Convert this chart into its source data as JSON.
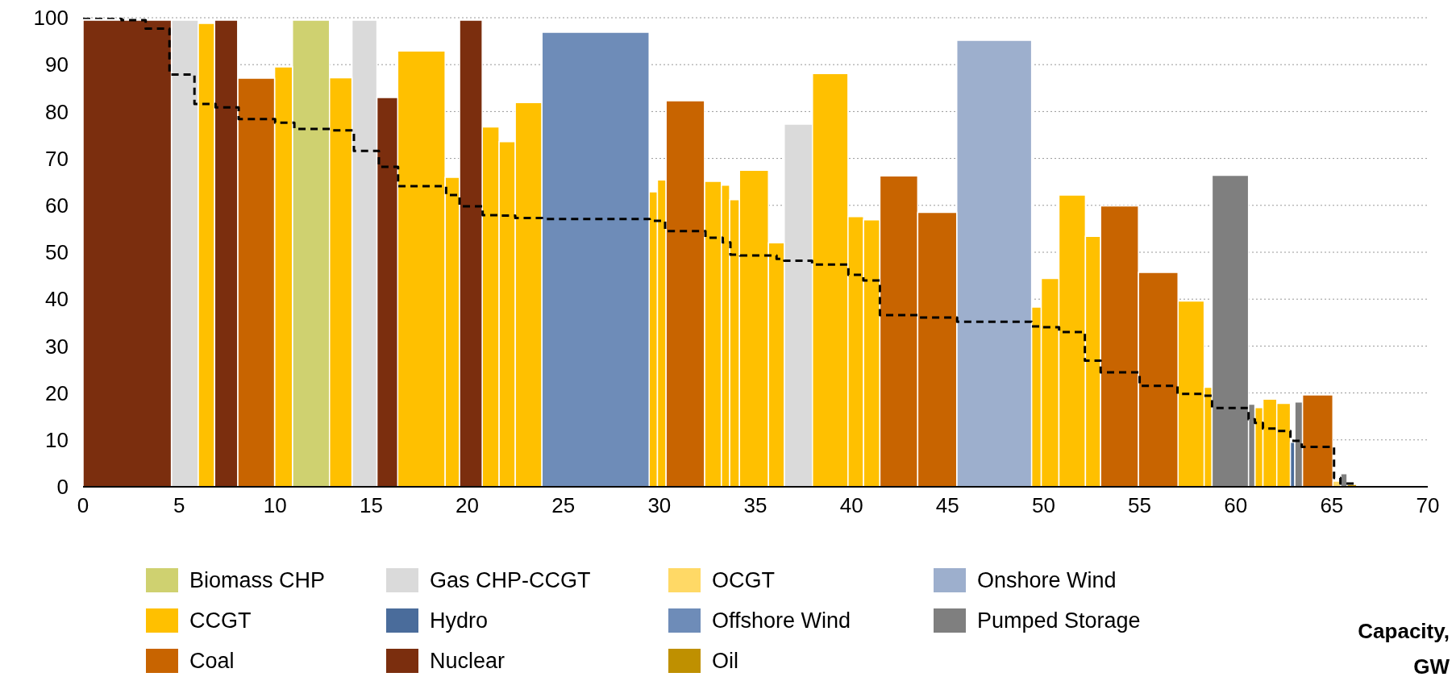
{
  "chart_data": {
    "type": "histogram",
    "xlabel": "Capacity, GW",
    "bins": [
      0,
      4.6,
      6.0,
      6.85,
      8.05,
      9.97,
      10.9,
      12.83,
      14.0,
      15.3,
      16.38,
      18.85,
      19.6,
      20.78,
      21.66,
      22.5,
      23.89,
      29.47,
      29.9,
      30.35,
      32.35,
      33.23,
      33.66,
      34.17,
      35.68,
      36.5,
      37.97,
      39.82,
      40.63,
      41.48,
      43.45,
      45.48,
      49.38,
      49.88,
      50.8,
      52.18,
      52.97,
      54.94,
      57.0,
      58.36,
      58.77,
      60.67,
      61.0,
      61.42,
      62.14,
      62.85,
      63.08,
      63.48,
      65.06,
      65.47,
      65.8,
      66.3
    ],
    "series": [
      {
        "name": "Biomass CHP",
        "color": "#cfd170",
        "values": [
          null,
          null,
          null,
          null,
          null,
          null,
          99.5,
          null,
          null,
          null,
          null,
          null,
          null,
          null,
          null,
          null,
          null,
          null,
          null,
          null,
          null,
          null,
          null,
          null,
          null,
          null,
          null,
          null,
          null,
          null,
          null,
          null,
          null,
          null,
          null,
          null,
          null,
          null,
          null,
          null,
          null,
          null,
          null,
          null,
          null,
          null,
          null,
          null,
          null,
          null,
          null
        ]
      },
      {
        "name": "Gas CHP-CCGT",
        "color": "#dadada",
        "values": [
          null,
          99.5,
          null,
          null,
          null,
          null,
          null,
          null,
          99.5,
          null,
          null,
          null,
          null,
          null,
          null,
          null,
          null,
          null,
          null,
          null,
          null,
          null,
          null,
          null,
          null,
          77.3,
          null,
          null,
          null,
          null,
          null,
          null,
          null,
          null,
          null,
          null,
          null,
          null,
          null,
          null,
          null,
          null,
          null,
          null,
          null,
          null,
          null,
          null,
          null,
          null,
          null
        ]
      },
      {
        "name": "OCGT",
        "color": "#ffd966",
        "values": [
          null,
          null,
          null,
          null,
          null,
          null,
          null,
          null,
          null,
          null,
          null,
          null,
          null,
          null,
          null,
          null,
          null,
          null,
          null,
          null,
          null,
          null,
          null,
          null,
          null,
          null,
          null,
          null,
          null,
          null,
          null,
          null,
          null,
          null,
          null,
          null,
          null,
          null,
          null,
          null,
          null,
          null,
          null,
          null,
          null,
          null,
          null,
          null,
          1.2,
          null,
          null
        ]
      },
      {
        "name": "Onshore Wind",
        "color": "#9dafcd",
        "values": [
          null,
          null,
          null,
          null,
          null,
          null,
          null,
          null,
          null,
          null,
          null,
          null,
          null,
          null,
          null,
          null,
          null,
          null,
          null,
          null,
          null,
          null,
          null,
          null,
          null,
          null,
          null,
          null,
          null,
          null,
          null,
          95.2,
          null,
          null,
          null,
          null,
          null,
          null,
          null,
          null,
          null,
          null,
          null,
          null,
          null,
          null,
          null,
          null,
          null,
          null,
          null
        ]
      },
      {
        "name": "CCGT",
        "color": "#ffc000",
        "values": [
          null,
          null,
          98.8,
          null,
          null,
          89.5,
          null,
          87.2,
          null,
          null,
          92.9,
          66.0,
          null,
          76.7,
          73.6,
          81.9,
          null,
          62.9,
          65.4,
          null,
          65.1,
          64.3,
          61.2,
          67.5,
          52.0,
          null,
          88.1,
          57.6,
          56.9,
          null,
          null,
          null,
          38.3,
          44.4,
          62.2,
          53.4,
          null,
          null,
          39.6,
          21.2,
          null,
          null,
          16.9,
          18.7,
          17.8,
          null,
          null,
          null,
          null,
          null,
          null
        ]
      },
      {
        "name": "Hydro",
        "color": "#4a6c9b",
        "values": [
          null,
          null,
          null,
          null,
          null,
          null,
          null,
          null,
          null,
          null,
          null,
          null,
          null,
          null,
          null,
          null,
          null,
          null,
          null,
          null,
          null,
          null,
          null,
          null,
          null,
          null,
          null,
          null,
          null,
          null,
          null,
          null,
          null,
          null,
          null,
          null,
          null,
          null,
          null,
          null,
          null,
          null,
          null,
          null,
          null,
          9.5,
          null,
          null,
          null,
          null,
          null
        ]
      },
      {
        "name": "Offshore Wind",
        "color": "#6e8cb8",
        "values": [
          null,
          null,
          null,
          null,
          null,
          null,
          null,
          null,
          null,
          null,
          null,
          null,
          null,
          null,
          null,
          null,
          96.9,
          null,
          null,
          null,
          null,
          null,
          null,
          null,
          null,
          null,
          null,
          null,
          null,
          null,
          null,
          null,
          null,
          null,
          null,
          null,
          null,
          null,
          null,
          null,
          null,
          null,
          null,
          null,
          null,
          null,
          null,
          null,
          null,
          null,
          null
        ]
      },
      {
        "name": "Pumped Storage",
        "color": "#7f7f7f",
        "values": [
          null,
          null,
          null,
          null,
          null,
          null,
          null,
          null,
          null,
          null,
          null,
          null,
          null,
          null,
          null,
          null,
          null,
          null,
          null,
          null,
          null,
          null,
          null,
          null,
          null,
          null,
          null,
          null,
          null,
          null,
          null,
          null,
          null,
          null,
          null,
          null,
          null,
          null,
          null,
          null,
          66.4,
          17.6,
          null,
          null,
          null,
          null,
          18.1,
          null,
          null,
          2.8,
          null
        ]
      },
      {
        "name": "Coal",
        "color": "#c86400",
        "values": [
          null,
          null,
          null,
          null,
          87.1,
          null,
          null,
          null,
          null,
          null,
          null,
          null,
          null,
          null,
          null,
          null,
          null,
          null,
          null,
          82.3,
          null,
          null,
          null,
          null,
          null,
          null,
          null,
          null,
          null,
          66.3,
          58.5,
          null,
          null,
          null,
          null,
          null,
          59.9,
          45.7,
          null,
          null,
          null,
          null,
          null,
          null,
          null,
          null,
          null,
          19.6,
          null,
          null,
          null
        ]
      },
      {
        "name": "Nuclear",
        "color": "#7b2e0e",
        "values": [
          99.5,
          null,
          null,
          99.5,
          null,
          null,
          null,
          null,
          null,
          83.0,
          null,
          null,
          99.5,
          null,
          null,
          null,
          null,
          null,
          null,
          null,
          null,
          null,
          null,
          null,
          null,
          null,
          null,
          null,
          null,
          null,
          null,
          null,
          null,
          null,
          null,
          null,
          null,
          null,
          null,
          null,
          null,
          null,
          null,
          null,
          null,
          null,
          null,
          null,
          null,
          null,
          null
        ]
      },
      {
        "name": "Oil",
        "color": "#bf9000",
        "values": [
          null,
          null,
          null,
          null,
          null,
          null,
          null,
          null,
          null,
          null,
          null,
          null,
          null,
          null,
          null,
          null,
          null,
          null,
          null,
          null,
          null,
          null,
          null,
          null,
          null,
          null,
          null,
          null,
          null,
          null,
          null,
          null,
          null,
          null,
          null,
          null,
          null,
          null,
          null,
          null,
          null,
          null,
          null,
          null,
          null,
          null,
          null,
          null,
          null,
          null,
          0.5
        ]
      },
      {
        "type": "step",
        "color": "#000000",
        "line_style": "dashed",
        "x": [
          0,
          2.0,
          3.26,
          4.5,
          5.8,
          6.9,
          8.1,
          10.0,
          11.0,
          12.9,
          14.1,
          15.4,
          16.4,
          18.9,
          19.6,
          20.8,
          21.7,
          22.5,
          23.9,
          29.5,
          30.3,
          32.4,
          33.3,
          33.7,
          34.2,
          36.1,
          36.5,
          37.95,
          39.84,
          40.62,
          41.48,
          43.45,
          45.5,
          49.38,
          49.88,
          50.81,
          52.15,
          52.97,
          55.0,
          56.97,
          58.37,
          58.77,
          60.67,
          61.0,
          61.42,
          62.13,
          62.85,
          63.44,
          65.12,
          65.45,
          66.3
        ],
        "values": [
          100,
          99.5,
          97.7,
          87.9,
          81.6,
          80.9,
          78.4,
          77.6,
          76.3,
          76.0,
          71.6,
          68.2,
          64.1,
          62.2,
          59.8,
          57.9,
          57.8,
          57.3,
          57.1,
          56.7,
          54.5,
          53.1,
          52.1,
          49.5,
          49.3,
          48.6,
          48.2,
          47.4,
          45.2,
          44.0,
          36.6,
          36.1,
          35.2,
          34.2,
          34.0,
          33.0,
          26.9,
          24.4,
          21.5,
          19.8,
          19.4,
          16.8,
          14.4,
          13.6,
          12.4,
          11.9,
          9.8,
          8.5,
          1.9,
          0.7,
          0.3
        ]
      }
    ],
    "xlim": [
      0,
      70
    ],
    "xticks": [
      0,
      5,
      10,
      15,
      20,
      25,
      30,
      35,
      40,
      45,
      50,
      55,
      60,
      65,
      70
    ],
    "ylim": [
      0,
      100
    ],
    "yticks": [
      0,
      10,
      20,
      30,
      40,
      50,
      60,
      70,
      80,
      90,
      100
    ],
    "grid": "y",
    "legend": "bottom"
  }
}
